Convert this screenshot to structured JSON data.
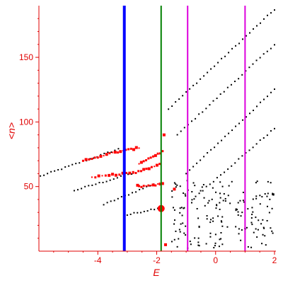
{
  "chart_data": {
    "type": "scatter",
    "xlabel": "E",
    "ylabel": "<n>",
    "xlim": [
      -6,
      2
    ],
    "ylim": [
      0,
      190
    ],
    "xticks": [
      -4,
      -2,
      0,
      2
    ],
    "yticks": [
      50,
      100,
      150
    ],
    "grid": false,
    "colors": {
      "axis": "#e00000",
      "black_points": "#000000",
      "red_points": "#ff0000"
    },
    "vertical_lines": [
      {
        "x": -3.1,
        "color": "#0000ff"
      },
      {
        "x": -1.85,
        "color": "#008000"
      },
      {
        "x": -0.95,
        "color": "#dd00dd"
      },
      {
        "x": 1.0,
        "color": "#dd00dd"
      }
    ],
    "series": [
      {
        "color": "#000000",
        "marker": "dot",
        "bands": [
          {
            "x_range": [
              -5.95,
              -3.3
            ],
            "y_range": [
              58,
              79
            ]
          },
          {
            "x_range": [
              -4.8,
              -2.85
            ],
            "y_range": [
              47,
              60
            ]
          },
          {
            "x_range": [
              -3.8,
              -2.1
            ],
            "y_range": [
              36,
              52
            ]
          },
          {
            "x_range": [
              -3.0,
              -1.85
            ],
            "y_range": [
              28,
              34
            ]
          },
          {
            "x_range": [
              -1.6,
              2.0
            ],
            "y_range": [
              110,
              187
            ]
          },
          {
            "x_range": [
              -1.3,
              2.0
            ],
            "y_range": [
              90,
              160
            ]
          },
          {
            "x_range": [
              -1.0,
              2.0
            ],
            "y_range": [
              60,
              125
            ]
          },
          {
            "x_range": [
              -0.8,
              2.0
            ],
            "y_range": [
              40,
              95
            ]
          }
        ],
        "cloud": {
          "x_range": [
            -1.5,
            2.0
          ],
          "y_range": [
            2,
            55
          ]
        }
      },
      {
        "color": "#ff0000",
        "marker": "square",
        "bands": [
          {
            "x_range": [
              -4.5,
              -3.5
            ],
            "y_range": [
              70,
              76
            ]
          },
          {
            "x_range": [
              -3.5,
              -2.6
            ],
            "y_range": [
              76,
              80
            ]
          },
          {
            "x_range": [
              -2.6,
              -1.8
            ],
            "y_range": [
              68,
              77
            ]
          },
          {
            "x_range": [
              -4.2,
              -2.8
            ],
            "y_range": [
              57,
              61
            ]
          },
          {
            "x_range": [
              -2.8,
              -1.9
            ],
            "y_range": [
              60,
              67
            ]
          },
          {
            "x_range": [
              -2.6,
              -1.8
            ],
            "y_range": [
              50,
              52
            ]
          }
        ],
        "scatter": [
          {
            "x": -1.85,
            "y": 33,
            "size": "large"
          },
          {
            "x": -1.75,
            "y": 90
          },
          {
            "x": -2.65,
            "y": 51
          },
          {
            "x": -1.4,
            "y": 48
          },
          {
            "x": -1.7,
            "y": 5
          }
        ]
      }
    ]
  }
}
